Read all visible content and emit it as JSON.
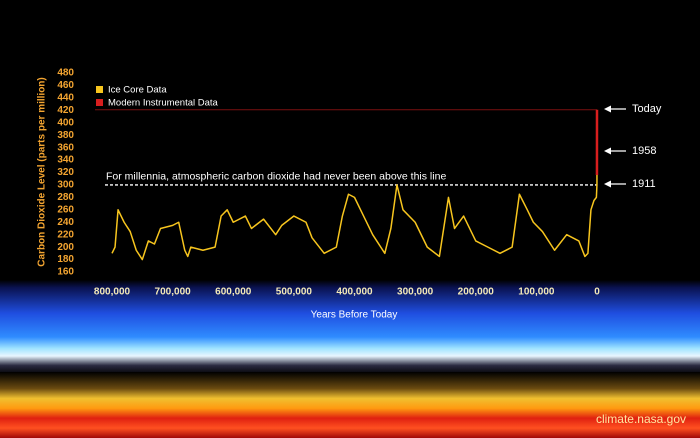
{
  "chart_data": {
    "type": "line",
    "ylabel": "Carbon Dioxide Level (parts per million)",
    "xlabel": "Years Before Today",
    "xlim": [
      800000,
      0
    ],
    "ylim": [
      160,
      480
    ],
    "xticks": [
      {
        "value": 800000,
        "label": "800,000"
      },
      {
        "value": 700000,
        "label": "700,000"
      },
      {
        "value": 600000,
        "label": "600,000"
      },
      {
        "value": 500000,
        "label": "500,000"
      },
      {
        "value": 400000,
        "label": "400,000"
      },
      {
        "value": 300000,
        "label": "300,000"
      },
      {
        "value": 200000,
        "label": "200,000"
      },
      {
        "value": 100000,
        "label": "100,000"
      },
      0
    ],
    "yticks": [
      160,
      180,
      200,
      220,
      240,
      260,
      280,
      300,
      320,
      340,
      360,
      380,
      400,
      420,
      440,
      460,
      480
    ],
    "series": [
      {
        "name": "Ice Core Data",
        "color": "#f7c51e",
        "x": [
          800000,
          795000,
          790000,
          780000,
          770000,
          760000,
          750000,
          740000,
          730000,
          720000,
          700000,
          690000,
          680000,
          675000,
          670000,
          650000,
          630000,
          620000,
          610000,
          600000,
          580000,
          570000,
          550000,
          530000,
          520000,
          500000,
          480000,
          470000,
          450000,
          430000,
          420000,
          410000,
          400000,
          390000,
          370000,
          350000,
          340000,
          330000,
          320000,
          300000,
          280000,
          260000,
          245000,
          235000,
          220000,
          200000,
          180000,
          160000,
          140000,
          128000,
          115000,
          105000,
          90000,
          70000,
          50000,
          30000,
          20000,
          15000,
          10000,
          5000,
          1000,
          100,
          65
        ],
        "values": [
          190,
          200,
          260,
          240,
          225,
          195,
          180,
          210,
          205,
          230,
          235,
          240,
          195,
          185,
          200,
          195,
          200,
          250,
          260,
          240,
          250,
          230,
          245,
          220,
          235,
          250,
          240,
          215,
          190,
          200,
          250,
          285,
          280,
          260,
          220,
          190,
          230,
          300,
          260,
          240,
          200,
          185,
          280,
          230,
          250,
          210,
          200,
          190,
          200,
          285,
          260,
          240,
          225,
          195,
          220,
          210,
          185,
          190,
          260,
          275,
          280,
          300,
          316
        ]
      },
      {
        "name": "Modern Instrumental Data",
        "color": "#d81e1e",
        "x": [
          65,
          45,
          25,
          0
        ],
        "values": [
          316,
          331,
          370,
          421
        ]
      }
    ],
    "reference_line": {
      "value": 300,
      "label": "For millennia, atmospheric carbon dioxide had never been above this line"
    },
    "annotations": [
      "Today",
      "1958",
      "1911"
    ],
    "credit": "climate.nasa.gov"
  }
}
